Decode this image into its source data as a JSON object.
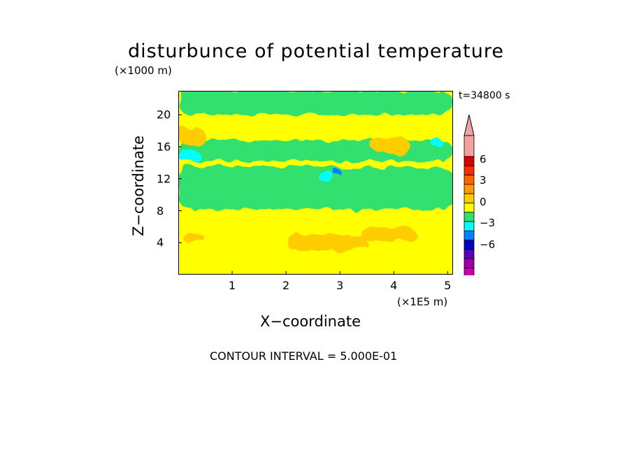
{
  "chart_data": {
    "type": "heatmap",
    "title": "disturbunce of potential temperature",
    "annotations": {
      "y_unit": "(×1000 m)",
      "x_unit": "(×1E5 m)",
      "time": "t=34800 s",
      "contour_interval": "CONTOUR INTERVAL = 5.000E-01"
    },
    "xlabel": "X−coordinate",
    "ylabel": "Z−coordinate",
    "xlim": [
      0,
      5.1
    ],
    "ylim": [
      0,
      23
    ],
    "x_ticks": [
      "1",
      "2",
      "3",
      "4",
      "5"
    ],
    "y_ticks": [
      "4",
      "8",
      "12",
      "16",
      "20"
    ],
    "x_tick_values": [
      1,
      2,
      3,
      4,
      5
    ],
    "y_tick_values": [
      4,
      8,
      12,
      16,
      20
    ],
    "colorbar": {
      "levels": [
        {
          "color": "#ff00bb"
        },
        {
          "color": "#cc00aa"
        },
        {
          "color": "#9900aa"
        },
        {
          "color": "#5a00b8"
        },
        {
          "color": "#0000c8"
        },
        {
          "color": "#0080ff"
        },
        {
          "color": "#00ffff"
        },
        {
          "color": "#30e070"
        },
        {
          "color": "#ffff00"
        },
        {
          "color": "#ffcc00"
        },
        {
          "color": "#ff9900"
        },
        {
          "color": "#ff6600"
        },
        {
          "color": "#ff2a00"
        },
        {
          "color": "#dd0000"
        },
        {
          "color": "#f2a0a0"
        }
      ],
      "tick_labels": [
        "6",
        "3",
        "0",
        "−3",
        "−6"
      ]
    },
    "regions": [
      {
        "level": "background",
        "color": "#ffff00",
        "x": [
          0,
          5.1
        ],
        "z": [
          0,
          23
        ]
      },
      {
        "level": "0",
        "color": "#30e070",
        "x": [
          0,
          5.1
        ],
        "z": [
          8.2,
          13.5
        ]
      },
      {
        "level": "0",
        "color": "#30e070",
        "x": [
          0,
          5.1
        ],
        "z": [
          20.0,
          23
        ]
      },
      {
        "level": "0",
        "color": "#30e070",
        "x": [
          0,
          5.1
        ],
        "z": [
          14.2,
          16.8
        ]
      },
      {
        "level": "+",
        "color": "#ffcc00",
        "x": [
          0.0,
          0.5
        ],
        "z": [
          16.2,
          18.4
        ]
      },
      {
        "level": "+",
        "color": "#ffcc00",
        "x": [
          3.6,
          4.3
        ],
        "z": [
          15.0,
          17.2
        ]
      },
      {
        "level": "+",
        "color": "#ffcc00",
        "x": [
          2.0,
          3.5
        ],
        "z": [
          3.0,
          5.0
        ]
      },
      {
        "level": "+",
        "color": "#ffcc00",
        "x": [
          3.4,
          4.4
        ],
        "z": [
          4.2,
          6.0
        ]
      },
      {
        "level": "+",
        "color": "#ffcc00",
        "x": [
          0.1,
          0.5
        ],
        "z": [
          4.0,
          5.0
        ]
      },
      {
        "level": "-",
        "color": "#00ffff",
        "x": [
          0.0,
          0.4
        ],
        "z": [
          14.2,
          15.6
        ]
      },
      {
        "level": "-",
        "color": "#00ffff",
        "x": [
          4.7,
          4.9
        ],
        "z": [
          16.0,
          17.0
        ]
      },
      {
        "level": "-",
        "color": "#00ffff",
        "x": [
          2.6,
          2.9
        ],
        "z": [
          11.7,
          12.8
        ]
      },
      {
        "level": "-",
        "color": "#0080ff",
        "x": [
          2.9,
          3.0
        ],
        "z": [
          12.4,
          13.2
        ]
      }
    ]
  }
}
